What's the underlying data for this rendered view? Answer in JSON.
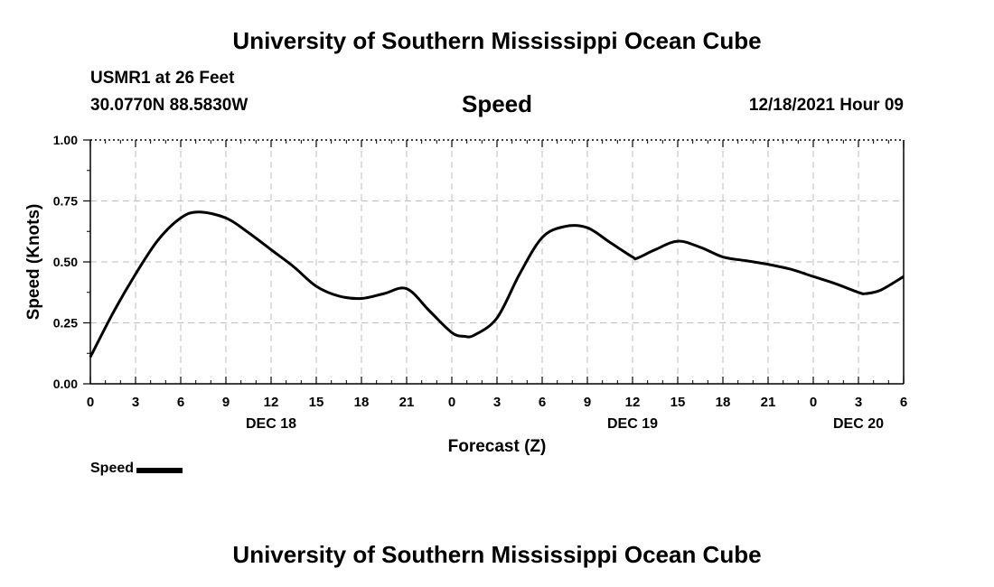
{
  "page": {
    "title_top": "University of Southern Mississippi Ocean Cube",
    "title_bottom": "University of Southern Mississippi Ocean Cube",
    "station": "USMR1 at 26 Feet",
    "coordinates": "30.0770N  88.5830W",
    "timestamp": "12/18/2021 Hour 09"
  },
  "chart_data": {
    "type": "line",
    "title": "Speed",
    "xlabel": "Forecast (Z)",
    "ylabel": "Speed (Knots)",
    "x_unit": "hours since 12/18/2021 00Z",
    "xlim": [
      0,
      54
    ],
    "ylim": [
      0,
      1
    ],
    "grid": true,
    "x_ticks": [
      0,
      3,
      6,
      9,
      12,
      15,
      18,
      21,
      24,
      27,
      30,
      33,
      36,
      39,
      42,
      45,
      48,
      51,
      54
    ],
    "x_tick_labels": [
      "0",
      "3",
      "6",
      "9",
      "12",
      "15",
      "18",
      "21",
      "0",
      "3",
      "6",
      "9",
      "12",
      "15",
      "18",
      "21",
      "0",
      "3",
      "6"
    ],
    "date_labels": [
      {
        "x": 12,
        "label": "DEC 18"
      },
      {
        "x": 36,
        "label": "DEC 19"
      },
      {
        "x": 51,
        "label": "DEC 20"
      }
    ],
    "y_ticks": [
      0,
      0.25,
      0.5,
      0.75,
      1.0
    ],
    "y_tick_labels": [
      "0.00",
      "0.25",
      "0.50",
      "0.75",
      "1.00"
    ],
    "legend": {
      "position": "bottom-left",
      "label": "Speed",
      "color": "#000000"
    },
    "series": [
      {
        "name": "Speed",
        "color": "#000000",
        "x": [
          0,
          1.5,
          3,
          4.5,
          6,
          7.2,
          9,
          10.5,
          12,
          13.5,
          15,
          16.5,
          18,
          19.5,
          21,
          22.5,
          24,
          24.8,
          25.5,
          27,
          28.5,
          30,
          31.5,
          33,
          34.5,
          36,
          36.3,
          37.5,
          39,
          40.5,
          42,
          43.5,
          45,
          46.5,
          48,
          49.5,
          51,
          51.5,
          52.5,
          54
        ],
        "values": [
          0.11,
          0.29,
          0.45,
          0.59,
          0.68,
          0.705,
          0.68,
          0.62,
          0.55,
          0.48,
          0.4,
          0.36,
          0.35,
          0.37,
          0.39,
          0.3,
          0.21,
          0.195,
          0.2,
          0.27,
          0.45,
          0.6,
          0.645,
          0.64,
          0.58,
          0.52,
          0.515,
          0.55,
          0.585,
          0.56,
          0.52,
          0.505,
          0.49,
          0.47,
          0.44,
          0.41,
          0.375,
          0.37,
          0.385,
          0.44
        ]
      }
    ]
  }
}
